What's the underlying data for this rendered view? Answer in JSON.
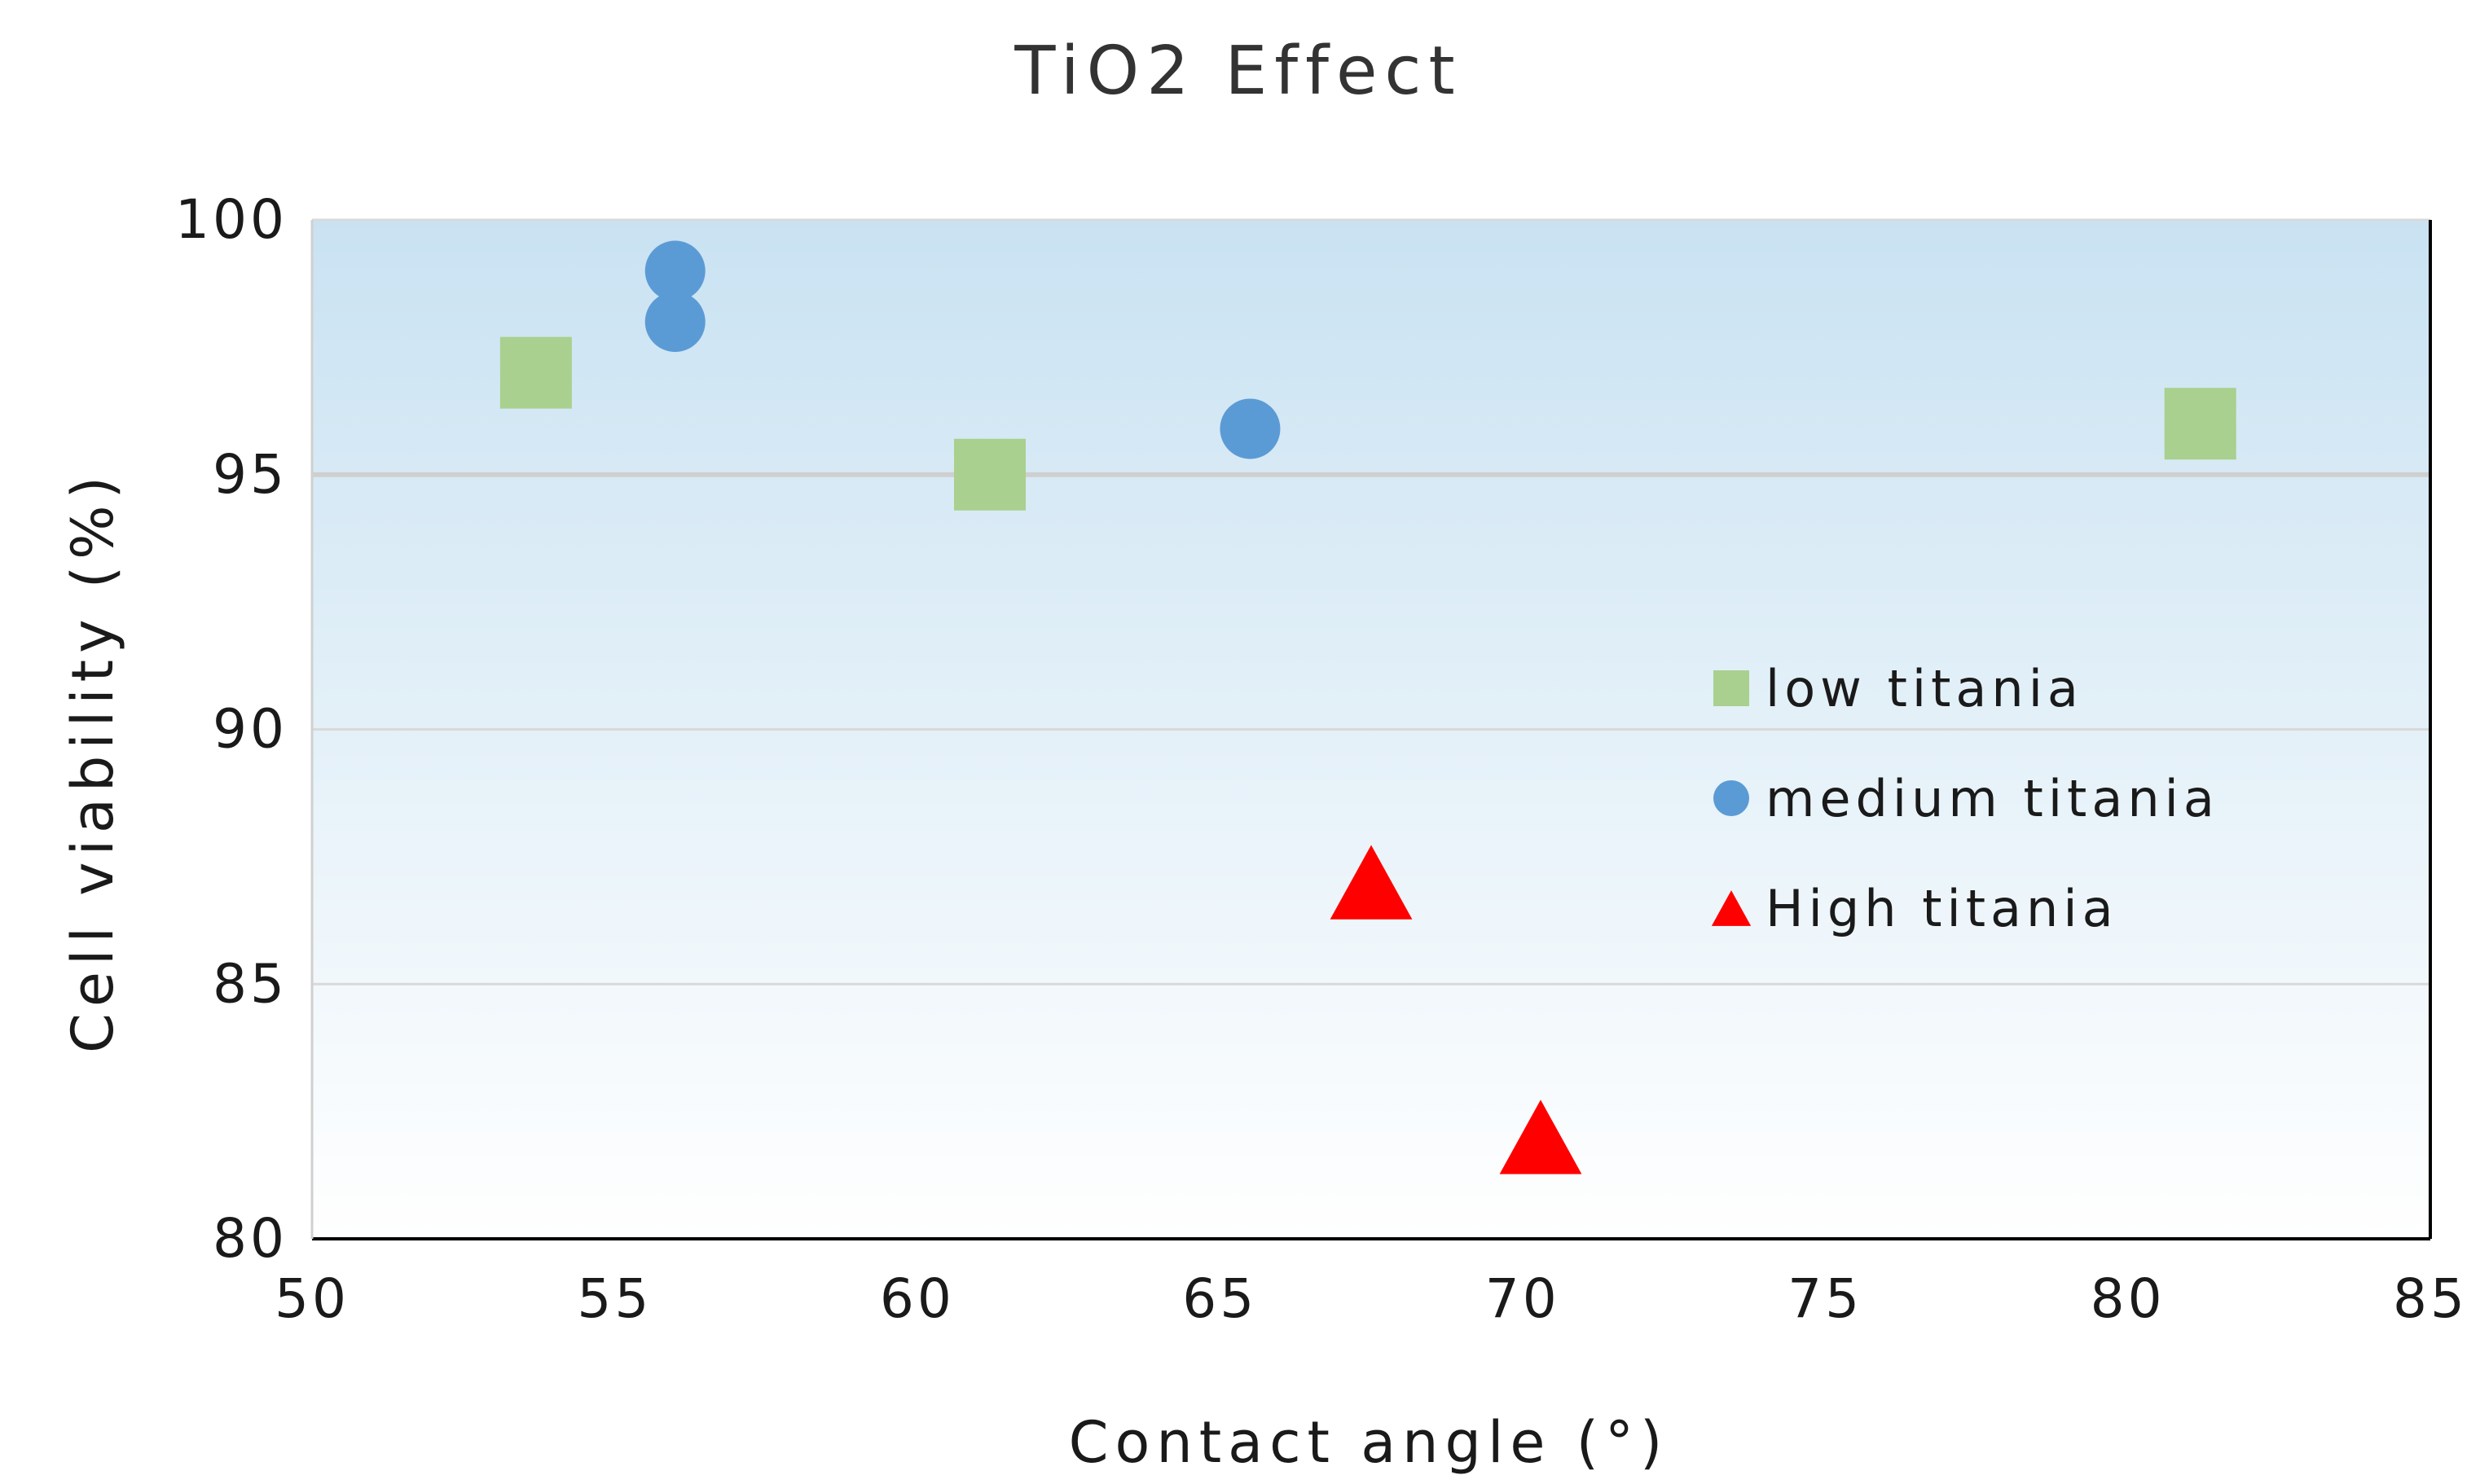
{
  "chart_data": {
    "type": "scatter",
    "title": "TiO2 Effect",
    "xlabel": "Contact angle (°)",
    "ylabel": "Cell viability (%)",
    "xlim": [
      50,
      85
    ],
    "ylim": [
      80,
      100
    ],
    "xticks": [
      50,
      55,
      60,
      65,
      70,
      75,
      80,
      85
    ],
    "yticks": [
      80,
      85,
      90,
      95,
      100
    ],
    "grid": true,
    "legend_position": "right",
    "series": [
      {
        "name": "low titania",
        "marker": "square",
        "color": "#a9d08e",
        "points": [
          {
            "x": 53.7,
            "y": 97
          },
          {
            "x": 61.2,
            "y": 95
          },
          {
            "x": 81.2,
            "y": 96
          }
        ]
      },
      {
        "name": "medium titania",
        "marker": "circle",
        "color": "#5b9bd5",
        "points": [
          {
            "x": 56.0,
            "y": 99
          },
          {
            "x": 56.0,
            "y": 98
          },
          {
            "x": 65.5,
            "y": 95.9
          }
        ]
      },
      {
        "name": "High titania",
        "marker": "triangle",
        "color": "#ff0000",
        "points": [
          {
            "x": 67.5,
            "y": 87
          },
          {
            "x": 70.3,
            "y": 82
          }
        ]
      }
    ]
  }
}
